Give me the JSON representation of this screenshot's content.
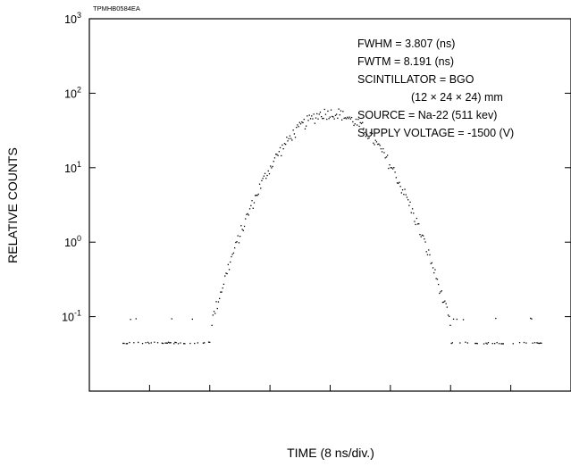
{
  "chart_data": {
    "type": "scatter",
    "code_label": "TPMHB0584EA",
    "xlabel": "TIME (8 ns/div.)",
    "ylabel": "RELATIVE COUNTS",
    "yscale": "log",
    "ylim": [
      0.01,
      1000
    ],
    "x_divisions": 8,
    "peak_value": 55,
    "y_ticks": [
      {
        "base": "10",
        "exp": "3"
      },
      {
        "base": "10",
        "exp": "2"
      },
      {
        "base": "10",
        "exp": "1"
      },
      {
        "base": "10",
        "exp": "0"
      },
      {
        "base": "10",
        "exp": "-1"
      }
    ],
    "annotations": [
      "FWHM = 3.807 (ns)",
      "FWTM = 8.191 (ns)",
      "SCINTILLATOR = BGO",
      "(12 × 24 × 24) mm",
      "SOURCE = Na-22 (511 kev)",
      "SUPPLY VOLTAGE = -1500 (V)"
    ],
    "grid": false
  }
}
